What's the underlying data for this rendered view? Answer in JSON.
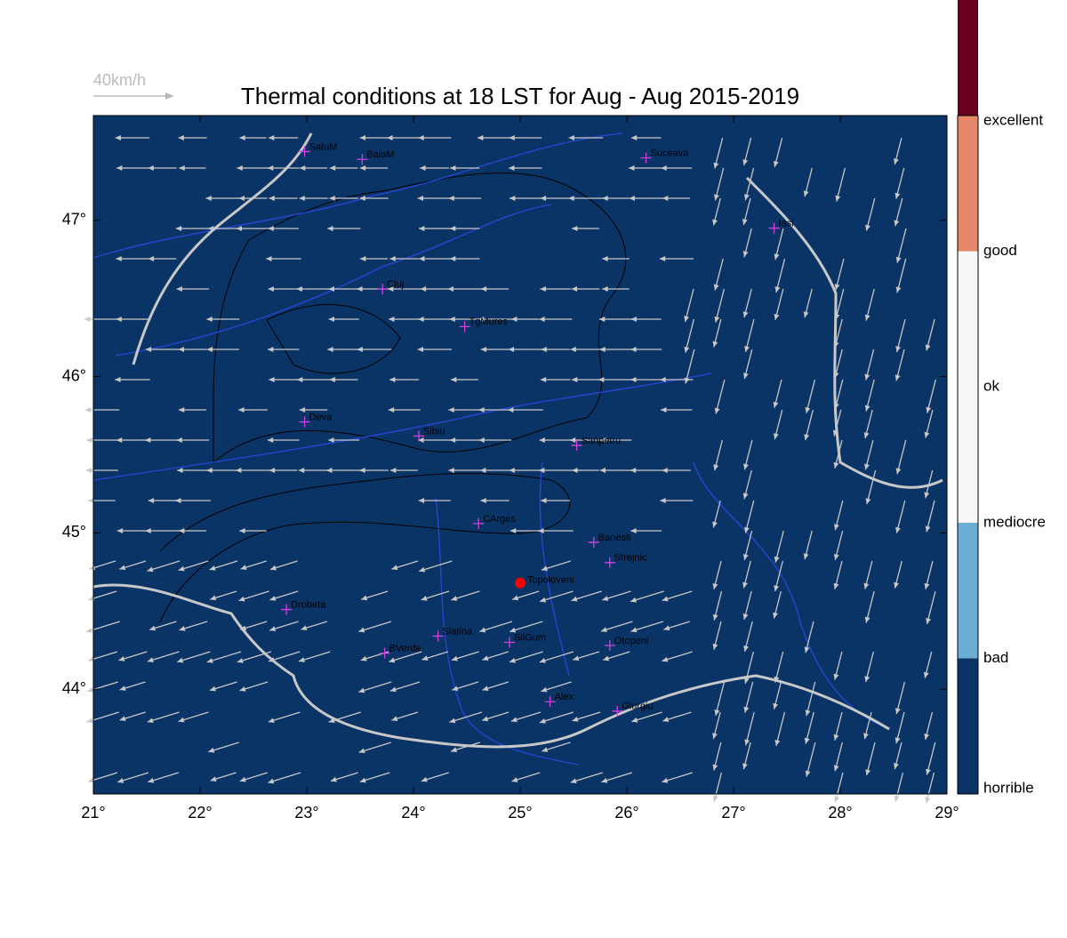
{
  "title": "Thermal conditions at 18 LST for Aug - Aug  2015-2019",
  "wind_scale": "40km/h",
  "lon_range": [
    21,
    29
  ],
  "lat_range": [
    43.33,
    47.67
  ],
  "lon_ticks": [
    {
      "value": 21,
      "label": "21°"
    },
    {
      "value": 22,
      "label": "22°"
    },
    {
      "value": 23,
      "label": "23°"
    },
    {
      "value": 24,
      "label": "24°"
    },
    {
      "value": 25,
      "label": "25°"
    },
    {
      "value": 26,
      "label": "26°"
    },
    {
      "value": 27,
      "label": "27°"
    },
    {
      "value": 28,
      "label": "28°"
    },
    {
      "value": 29,
      "label": "29°"
    }
  ],
  "lat_ticks": [
    {
      "value": 44,
      "label": "44°"
    },
    {
      "value": 45,
      "label": "45°"
    },
    {
      "value": 46,
      "label": "46°"
    },
    {
      "value": 47,
      "label": "47°"
    }
  ],
  "colorbar": {
    "levels": [
      "horrible",
      "bad",
      "mediocre",
      "ok",
      "good",
      "excellent"
    ],
    "colors": [
      "#0b3466",
      "#6aaed6",
      "#f7f7f7",
      "#f7f7f7",
      "#e5886a",
      "#67001f"
    ]
  },
  "cities": [
    {
      "name": "SatuM",
      "lon": 22.98,
      "lat": 47.44
    },
    {
      "name": "BaiaM",
      "lon": 23.52,
      "lat": 47.39
    },
    {
      "name": "Suceava",
      "lon": 26.18,
      "lat": 47.4
    },
    {
      "name": "Iasi",
      "lon": 27.38,
      "lat": 46.95
    },
    {
      "name": "Cluj",
      "lon": 23.71,
      "lat": 46.56
    },
    {
      "name": "TgMures",
      "lon": 24.48,
      "lat": 46.32
    },
    {
      "name": "Deva",
      "lon": 22.98,
      "lat": 45.71
    },
    {
      "name": "Sibiu",
      "lon": 24.05,
      "lat": 45.62
    },
    {
      "name": "Sanpetru",
      "lon": 25.53,
      "lat": 45.56
    },
    {
      "name": "CArges",
      "lon": 24.61,
      "lat": 45.06
    },
    {
      "name": "Banesti",
      "lon": 25.69,
      "lat": 44.94
    },
    {
      "name": "Strejnic",
      "lon": 25.84,
      "lat": 44.81
    },
    {
      "name": "Drobeta",
      "lon": 22.81,
      "lat": 44.51
    },
    {
      "name": "Slatina",
      "lon": 24.23,
      "lat": 44.34
    },
    {
      "name": "SilGum",
      "lon": 24.9,
      "lat": 44.3
    },
    {
      "name": "BVerde",
      "lon": 23.73,
      "lat": 44.23
    },
    {
      "name": "Otopeni",
      "lon": 25.84,
      "lat": 44.28
    },
    {
      "name": "Alex",
      "lon": 25.28,
      "lat": 43.92
    },
    {
      "name": "Giurgiu",
      "lon": 25.91,
      "lat": 43.86
    }
  ],
  "launch_site": {
    "name": "Topoloveni",
    "lon": 25.0,
    "lat": 44.68
  }
}
